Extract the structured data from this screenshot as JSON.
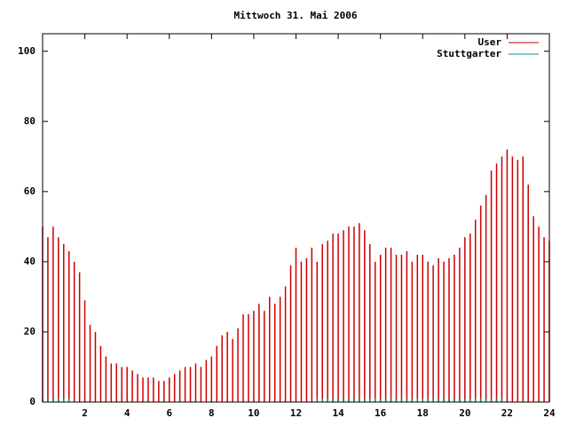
{
  "chart_data": {
    "type": "impulse",
    "title": "Mittwoch 31. Mai 2006",
    "x": [
      0,
      0.25,
      0.5,
      0.75,
      1,
      1.25,
      1.5,
      1.75,
      2,
      2.25,
      2.5,
      2.75,
      3,
      3.25,
      3.5,
      3.75,
      4,
      4.25,
      4.5,
      4.75,
      5,
      5.25,
      5.5,
      5.75,
      6,
      6.25,
      6.5,
      6.75,
      7,
      7.25,
      7.5,
      7.75,
      8,
      8.25,
      8.5,
      8.75,
      9,
      9.25,
      9.5,
      9.75,
      10,
      10.25,
      10.5,
      10.75,
      11,
      11.25,
      11.5,
      11.75,
      12,
      12.25,
      12.5,
      12.75,
      13,
      13.25,
      13.5,
      13.75,
      14,
      14.25,
      14.5,
      14.75,
      15,
      15.25,
      15.5,
      15.75,
      16,
      16.25,
      16.5,
      16.75,
      17,
      17.25,
      17.5,
      17.75,
      18,
      18.25,
      18.5,
      18.75,
      19,
      19.25,
      19.5,
      19.75,
      20,
      20.25,
      20.5,
      20.75,
      21,
      21.25,
      21.5,
      21.75,
      22,
      22.25,
      22.5,
      22.75,
      23,
      23.25,
      23.5,
      23.75,
      24
    ],
    "series": [
      {
        "name": "User",
        "color": "#cc0000",
        "values": [
          50,
          47,
          50,
          47,
          45,
          43,
          40,
          37,
          29,
          22,
          20,
          16,
          13,
          11,
          11,
          10,
          10,
          9,
          8,
          7,
          7,
          7,
          6,
          6,
          7,
          8,
          9,
          10,
          10,
          11,
          10,
          12,
          13,
          16,
          19,
          20,
          18,
          21,
          25,
          25,
          26,
          28,
          26,
          30,
          28,
          30,
          33,
          39,
          44,
          40,
          41,
          44,
          40,
          45,
          46,
          48,
          48,
          49,
          50,
          50,
          51,
          49,
          45,
          40,
          42,
          44,
          44,
          42,
          42,
          43,
          40,
          42,
          42,
          40,
          39,
          41,
          40,
          41,
          42,
          44,
          47,
          48,
          52,
          56,
          59,
          66,
          68,
          70,
          72,
          70,
          69,
          70,
          62,
          53,
          50,
          47,
          46
        ]
      },
      {
        "name": "Stuttgarter",
        "color": "#008b8b",
        "values": [
          1,
          1,
          1,
          1,
          1,
          1,
          null,
          null,
          null,
          null,
          null,
          null,
          null,
          null,
          null,
          null,
          null,
          null,
          null,
          null,
          null,
          null,
          null,
          null,
          null,
          null,
          null,
          null,
          null,
          null,
          null,
          null,
          null,
          null,
          null,
          null,
          null,
          null,
          null,
          null,
          null,
          null,
          null,
          null,
          null,
          null,
          null,
          null,
          null,
          null,
          null,
          null,
          1,
          1,
          1,
          1,
          1,
          1,
          1,
          1,
          1,
          1,
          1,
          1,
          1,
          1,
          1,
          1,
          1,
          1,
          1,
          1,
          1,
          1,
          1,
          1,
          1,
          1,
          1,
          1,
          1,
          1,
          1,
          1,
          1,
          1,
          1,
          1,
          null,
          null,
          null,
          null,
          null,
          null,
          null,
          null,
          null
        ]
      }
    ],
    "xlim": [
      0,
      24
    ],
    "xticks": [
      2,
      4,
      6,
      8,
      10,
      12,
      14,
      16,
      18,
      20,
      22,
      24
    ],
    "ylim": [
      0,
      105
    ],
    "yticks": [
      0,
      20,
      40,
      60,
      80,
      100
    ],
    "legend": "top-right"
  }
}
